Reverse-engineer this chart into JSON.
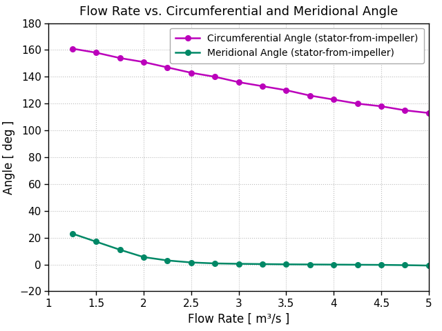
{
  "title": "Flow Rate vs. Circumferential and Meridional Angle",
  "xlabel": "Flow Rate [ m³/s ]",
  "ylabel": "Angle [ deg ]",
  "xlim": [
    1.0,
    5.0
  ],
  "ylim": [
    -20,
    180
  ],
  "xticks": [
    1.0,
    1.5,
    2.0,
    2.5,
    3.0,
    3.5,
    4.0,
    4.5,
    5.0
  ],
  "xticklabels": [
    "1",
    "1.5",
    "2",
    "2.5",
    "3",
    "3.5",
    "4",
    "4.5",
    "5"
  ],
  "yticks": [
    -20,
    0,
    20,
    40,
    60,
    80,
    100,
    120,
    140,
    160,
    180
  ],
  "circ_x": [
    1.25,
    1.5,
    1.75,
    2.0,
    2.25,
    2.5,
    2.75,
    3.0,
    3.25,
    3.5,
    3.75,
    4.0,
    4.25,
    4.5,
    4.75,
    5.0
  ],
  "circ_y": [
    161,
    158,
    154,
    151,
    147,
    143,
    140,
    136,
    133,
    130,
    126,
    123,
    120,
    118,
    115,
    113
  ],
  "merid_x": [
    1.25,
    1.5,
    1.75,
    2.0,
    2.25,
    2.5,
    2.75,
    3.0,
    3.25,
    3.5,
    3.75,
    4.0,
    4.25,
    4.5,
    4.75,
    5.0
  ],
  "merid_y": [
    23,
    17,
    11,
    5.5,
    3.0,
    1.5,
    0.8,
    0.5,
    0.3,
    0.1,
    0.0,
    -0.1,
    -0.2,
    -0.3,
    -0.5,
    -0.8
  ],
  "circ_color": "#BB00BB",
  "merid_color": "#008866",
  "circ_label": "Circumferential Angle (stator-from-impeller)",
  "merid_label": "Meridional Angle (stator-from-impeller)",
  "grid_color": "#bbbbbb",
  "bg_color": "#ffffff",
  "marker": "o",
  "linewidth": 1.8,
  "markersize": 5.5,
  "title_fontsize": 13,
  "label_fontsize": 12,
  "tick_fontsize": 11,
  "legend_fontsize": 10
}
